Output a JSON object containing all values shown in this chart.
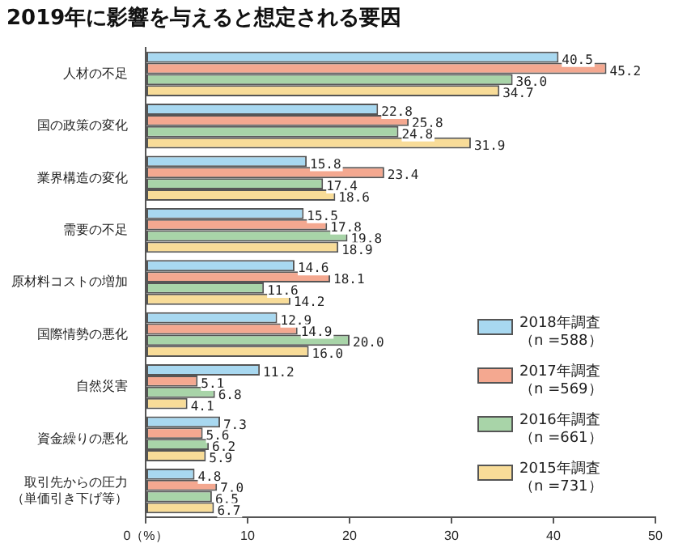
{
  "chart_data": {
    "type": "bar",
    "orientation": "horizontal",
    "title": "2019年に影響を与えると想定される要因",
    "categories": [
      "人材の不足",
      "国の政策の変化",
      "業界構造の変化",
      "需要の不足",
      "原材料コストの増加",
      "国際情勢の悪化",
      "自然災害",
      "資金繰りの悪化",
      "取引先からの圧力（単価引き下げ等）"
    ],
    "series": [
      {
        "name": "2018年調査（n =588）",
        "color": "#a8d8f0",
        "values": [
          40.5,
          22.8,
          15.8,
          15.5,
          14.6,
          12.9,
          11.2,
          7.3,
          4.8
        ],
        "value_labels": [
          "40.5",
          "22.8",
          "15.8",
          "15.5",
          "14.6",
          "12.9",
          "11.2",
          "7.3",
          "4.8"
        ]
      },
      {
        "name": "2017年調査（n =569）",
        "color": "#f4a890",
        "values": [
          45.2,
          25.8,
          23.4,
          17.8,
          18.1,
          14.9,
          5.1,
          5.6,
          7.0
        ],
        "value_labels": [
          "45.2",
          "25.8",
          "23.4",
          "17.8",
          "18.1",
          "14.9",
          "5.1",
          "5.6",
          "7.0"
        ]
      },
      {
        "name": "2016年調査（n =661）",
        "color": "#a8d4a8",
        "values": [
          36.0,
          24.8,
          17.4,
          19.8,
          11.6,
          20.0,
          6.8,
          6.2,
          6.5
        ],
        "value_labels": [
          "36.0",
          "24.8",
          "17.4",
          "19.8",
          "11.6",
          "20.0",
          "6.8",
          "6.2",
          "6.5"
        ]
      },
      {
        "name": "2015年調査（n =731）",
        "color": "#f8dc98",
        "values": [
          34.7,
          31.9,
          18.6,
          18.9,
          14.2,
          16.0,
          4.1,
          5.9,
          6.7
        ],
        "value_labels": [
          "34.7",
          "31.9",
          "18.6",
          "18.9",
          "14.2",
          "16.0",
          "4.1",
          "5.9",
          "6.7"
        ]
      }
    ],
    "xlim": [
      0,
      50
    ],
    "xticks": [
      {
        "value": 0,
        "label": "0（%）"
      },
      10,
      20,
      30,
      40,
      50
    ],
    "grid": false,
    "legend": "right"
  }
}
